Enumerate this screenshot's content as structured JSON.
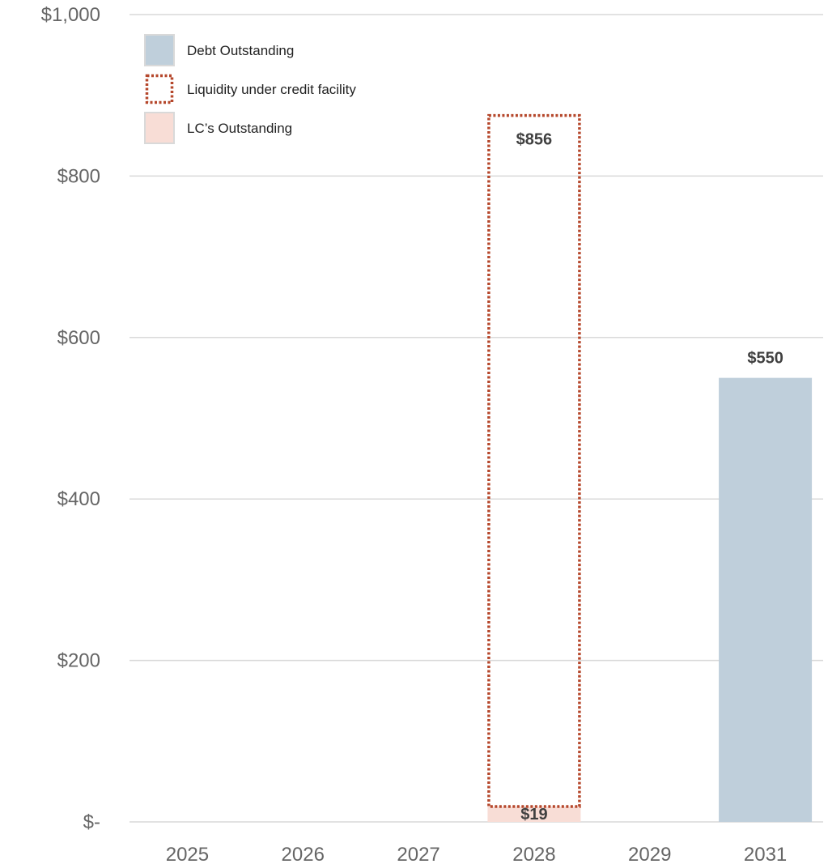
{
  "chart_data": {
    "type": "bar",
    "categories": [
      "2025",
      "2026",
      "2027",
      "2028",
      "2029",
      "2031"
    ],
    "ylim": [
      0,
      1000
    ],
    "yticks": [
      0,
      200,
      400,
      600,
      800,
      1000
    ],
    "ytick_labels": [
      "$-",
      "$200",
      "$400",
      "$600",
      "$800",
      "$1,000"
    ],
    "grid": true,
    "legend_position": "top-left",
    "series": [
      {
        "name": "Debt Outstanding",
        "style": "filled",
        "color": "#bfcfdb",
        "values": [
          0,
          0,
          0,
          0,
          0,
          550
        ],
        "labels": [
          "",
          "",
          "",
          "",
          "",
          "$550"
        ]
      },
      {
        "name": "Liquidity under credit facility",
        "style": "dotted-outline",
        "color": "#b5472b",
        "values": [
          0,
          0,
          0,
          856,
          0,
          0
        ],
        "labels": [
          "",
          "",
          "",
          "$856",
          "",
          ""
        ]
      },
      {
        "name": "LC’s Outstanding",
        "style": "filled",
        "color": "#f8ddd6",
        "values": [
          0,
          0,
          0,
          19,
          0,
          0
        ],
        "labels": [
          "",
          "",
          "",
          "$19",
          "",
          ""
        ]
      }
    ]
  }
}
